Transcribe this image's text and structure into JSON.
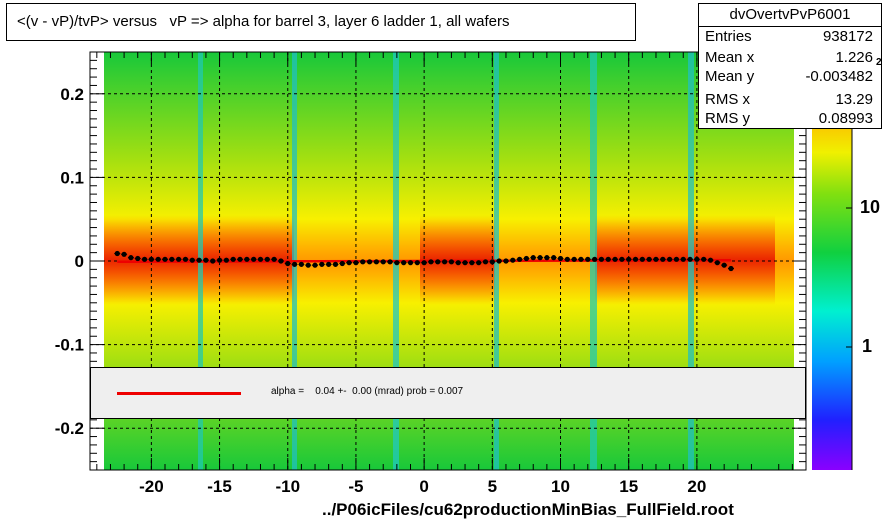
{
  "title": "<(v - vP)/tvP> versus   vP => alpha for barrel 3, layer 6 ladder 1, all wafers",
  "stats": {
    "name": "dvOvertvPvP6001",
    "rows": [
      {
        "key": "Entries",
        "value": "938172"
      },
      {
        "key": "Mean x",
        "value": "1.226"
      },
      {
        "key": "Mean y",
        "value": "-0.003482"
      },
      {
        "key": "RMS x",
        "value": "13.29"
      },
      {
        "key": "RMS y",
        "value": "0.08993"
      }
    ]
  },
  "fit_legend": "alpha =    0.04 +-  0.00 (mrad) prob = 0.007",
  "footer": "../P06icFiles/cu62productionMinBias_FullField.root",
  "colorbar": {
    "labels": [
      "10",
      "1"
    ],
    "exponent_label": "2"
  },
  "colors": {
    "fit_line": "#ee0000",
    "profile_markers": "#000000"
  },
  "chart_data": {
    "type": "heatmap",
    "title": "<(v - vP)/tvP> versus   vP => alpha for barrel 3, layer 6 ladder 1, all wafers",
    "xlim": [
      -24.5,
      28
    ],
    "ylim": [
      -0.25,
      0.25
    ],
    "x_ticks": [
      -20,
      -15,
      -10,
      -5,
      0,
      5,
      10,
      15,
      20
    ],
    "x_tick_labels": [
      "-20",
      "-15",
      "-10",
      "-5",
      "0",
      "5",
      "10",
      "15",
      "20"
    ],
    "y_ticks": [
      0.2,
      0.1,
      0,
      -0.1,
      -0.2
    ],
    "y_tick_labels": [
      "0.2",
      "0.1",
      "0",
      "-0.1",
      "-0.2"
    ],
    "grid": true,
    "colorbar_scale": "log",
    "fit_line": {
      "slope": 4e-05,
      "intercept": 0.0
    },
    "profile": {
      "x": [
        -22.5,
        -22,
        -21.5,
        -21,
        -20.5,
        -20,
        -19.5,
        -19,
        -18.5,
        -18,
        -17.5,
        -17,
        -16.5,
        -16,
        -15.5,
        -15,
        -14.5,
        -14,
        -13.5,
        -13,
        -12.5,
        -12,
        -11.5,
        -11,
        -10.5,
        -10,
        -9.5,
        -9,
        -8.5,
        -8,
        -7.5,
        -7,
        -6.5,
        -6,
        -5.5,
        -5,
        -4.5,
        -4,
        -3.5,
        -3,
        -2.5,
        -2,
        -1.5,
        -1,
        -0.5,
        0,
        0.5,
        1,
        1.5,
        2,
        2.5,
        3,
        3.5,
        4,
        4.5,
        5,
        5.5,
        6,
        6.5,
        7,
        7.5,
        8,
        8.5,
        9,
        9.5,
        10,
        10.5,
        11,
        11.5,
        12,
        12.5,
        13,
        13.5,
        14,
        14.5,
        15,
        15.5,
        16,
        16.5,
        17,
        17.5,
        18,
        18.5,
        19,
        19.5,
        20,
        20.5,
        21,
        21.5,
        22,
        22.5
      ],
      "y": [
        0.009,
        0.008,
        0.004,
        0.003,
        0.002,
        0.002,
        0.002,
        0.002,
        0.002,
        0.002,
        0.002,
        0.001,
        0.001,
        0.001,
        0.0,
        0.001,
        0.001,
        0.002,
        0.002,
        0.002,
        0.002,
        0.002,
        0.002,
        0.002,
        0.0,
        -0.003,
        -0.004,
        -0.004,
        -0.005,
        -0.005,
        -0.004,
        -0.004,
        -0.004,
        -0.003,
        -0.002,
        -0.002,
        -0.001,
        -0.001,
        -0.001,
        -0.001,
        -0.001,
        -0.002,
        -0.002,
        -0.002,
        -0.002,
        -0.002,
        -0.001,
        -0.001,
        -0.001,
        -0.001,
        -0.002,
        -0.002,
        -0.002,
        -0.002,
        -0.001,
        -0.001,
        0.0,
        0.0,
        0.001,
        0.002,
        0.003,
        0.004,
        0.004,
        0.004,
        0.004,
        0.003,
        0.002,
        0.002,
        0.002,
        0.002,
        0.002,
        0.002,
        0.002,
        0.002,
        0.002,
        0.002,
        0.002,
        0.002,
        0.002,
        0.002,
        0.002,
        0.002,
        0.002,
        0.002,
        0.002,
        0.002,
        0.002,
        0.001,
        -0.002,
        -0.005,
        -0.009
      ]
    }
  }
}
